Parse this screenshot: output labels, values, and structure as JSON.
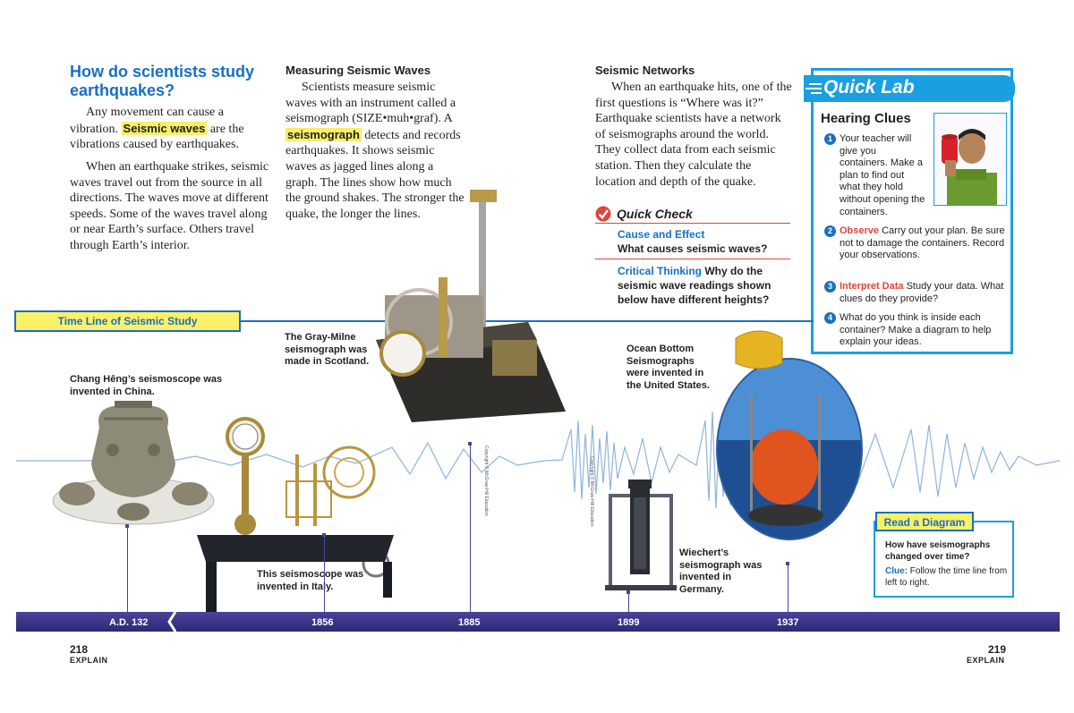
{
  "left": {
    "heading": "How do scientists study earthquakes?",
    "p1_a": "Any movement can cause a vibration.",
    "p1_term": "Seismic waves",
    "p1_b": "are the vibrations caused by earthquakes.",
    "p2": "When an earthquake strikes, seismic waves travel out from the source in all directions. The waves move at different speeds. Some of the waves travel along or near Earth’s surface. Others travel through Earth’s interior."
  },
  "middle": {
    "heading": "Measuring Seismic Waves",
    "p_a": "Scientists measure seismic waves with an instrument called a seismograph (SIZE•muh•graf). A",
    "p_term": "seismograph",
    "p_b": "detects and records earthquakes. It shows seismic waves as jagged lines along a graph. The lines show how much the ground shakes. The stronger the quake, the longer the lines."
  },
  "networks": {
    "heading": "Seismic Networks",
    "p": "When an earthquake hits, one of the first questions is “Where was it?” Earthquake scientists have a network of seismographs around the world. They collect data from each seismic station. Then they calculate the location and depth of the quake."
  },
  "quick_check": {
    "title": "Quick Check",
    "cause_label": "Cause and Effect",
    "cause_q": "What causes seismic waves?",
    "critical_label": "Critical Thinking",
    "critical_q": "Why do the seismic wave readings shown below have different heights?"
  },
  "quick_lab": {
    "title": "Quick Lab",
    "subtitle": "Hearing Clues",
    "step1": "Your teacher will give you containers. Make a plan to find out what they hold without opening the containers.",
    "step2_label": "Observe",
    "step2": "Carry out your plan. Be sure not to damage the containers. Record your observations.",
    "step3_label": "Interpret Data",
    "step3": "Study your data. What clues do they provide?",
    "step4": "What do you think is inside each container? Make a diagram to help explain your ideas.",
    "nums": [
      "1",
      "2",
      "3",
      "4"
    ]
  },
  "timeline": {
    "label": "Time Line of Seismic Study",
    "years": [
      "A.D. 132",
      "1856",
      "1885",
      "1899",
      "1937"
    ],
    "captions": {
      "china": "Chang Hêng’s seismoscope was invented in China.",
      "italy": "This seismoscope was invented in Italy.",
      "scotland": "The Gray-Milne seismograph was made in Scotland.",
      "germany": "Wiechert’s seismograph was invented in Germany.",
      "usa": "Ocean Bottom Seismographs were invented in the United States."
    }
  },
  "read_diagram": {
    "label": "Read a Diagram",
    "question": "How have seismographs changed over time?",
    "clue_label": "Clue:",
    "clue": "Follow the time line from left to right."
  },
  "footer": {
    "left_page": "218",
    "right_page": "219",
    "left_explain": "EXPLAIN",
    "right_explain": "EXPLAIN"
  },
  "copyright": "Copyright © McGraw-Hill Education",
  "colors": {
    "heading_blue": "#1a6fc0",
    "lab_blue": "#1a9fe0",
    "highlight": "#f5ef6a",
    "bar_purple": "#3a3388",
    "accent_red": "#e0443a"
  }
}
